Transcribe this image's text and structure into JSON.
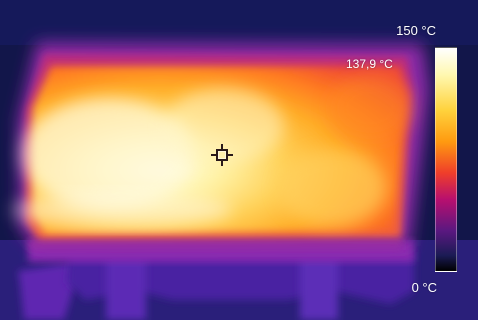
{
  "thermal_image": {
    "scale_max_label": "150 °C",
    "scale_min_label": "0 °C",
    "spot_temperature_label": "137,9 °C",
    "palette_colors": [
      "#ffffff",
      "#fff8b0",
      "#ffd23c",
      "#ff9a10",
      "#ef3e2a",
      "#b70f6f",
      "#5a1880",
      "#1b1b55",
      "#000000"
    ],
    "crosshair_icon": "crosshair-icon"
  }
}
